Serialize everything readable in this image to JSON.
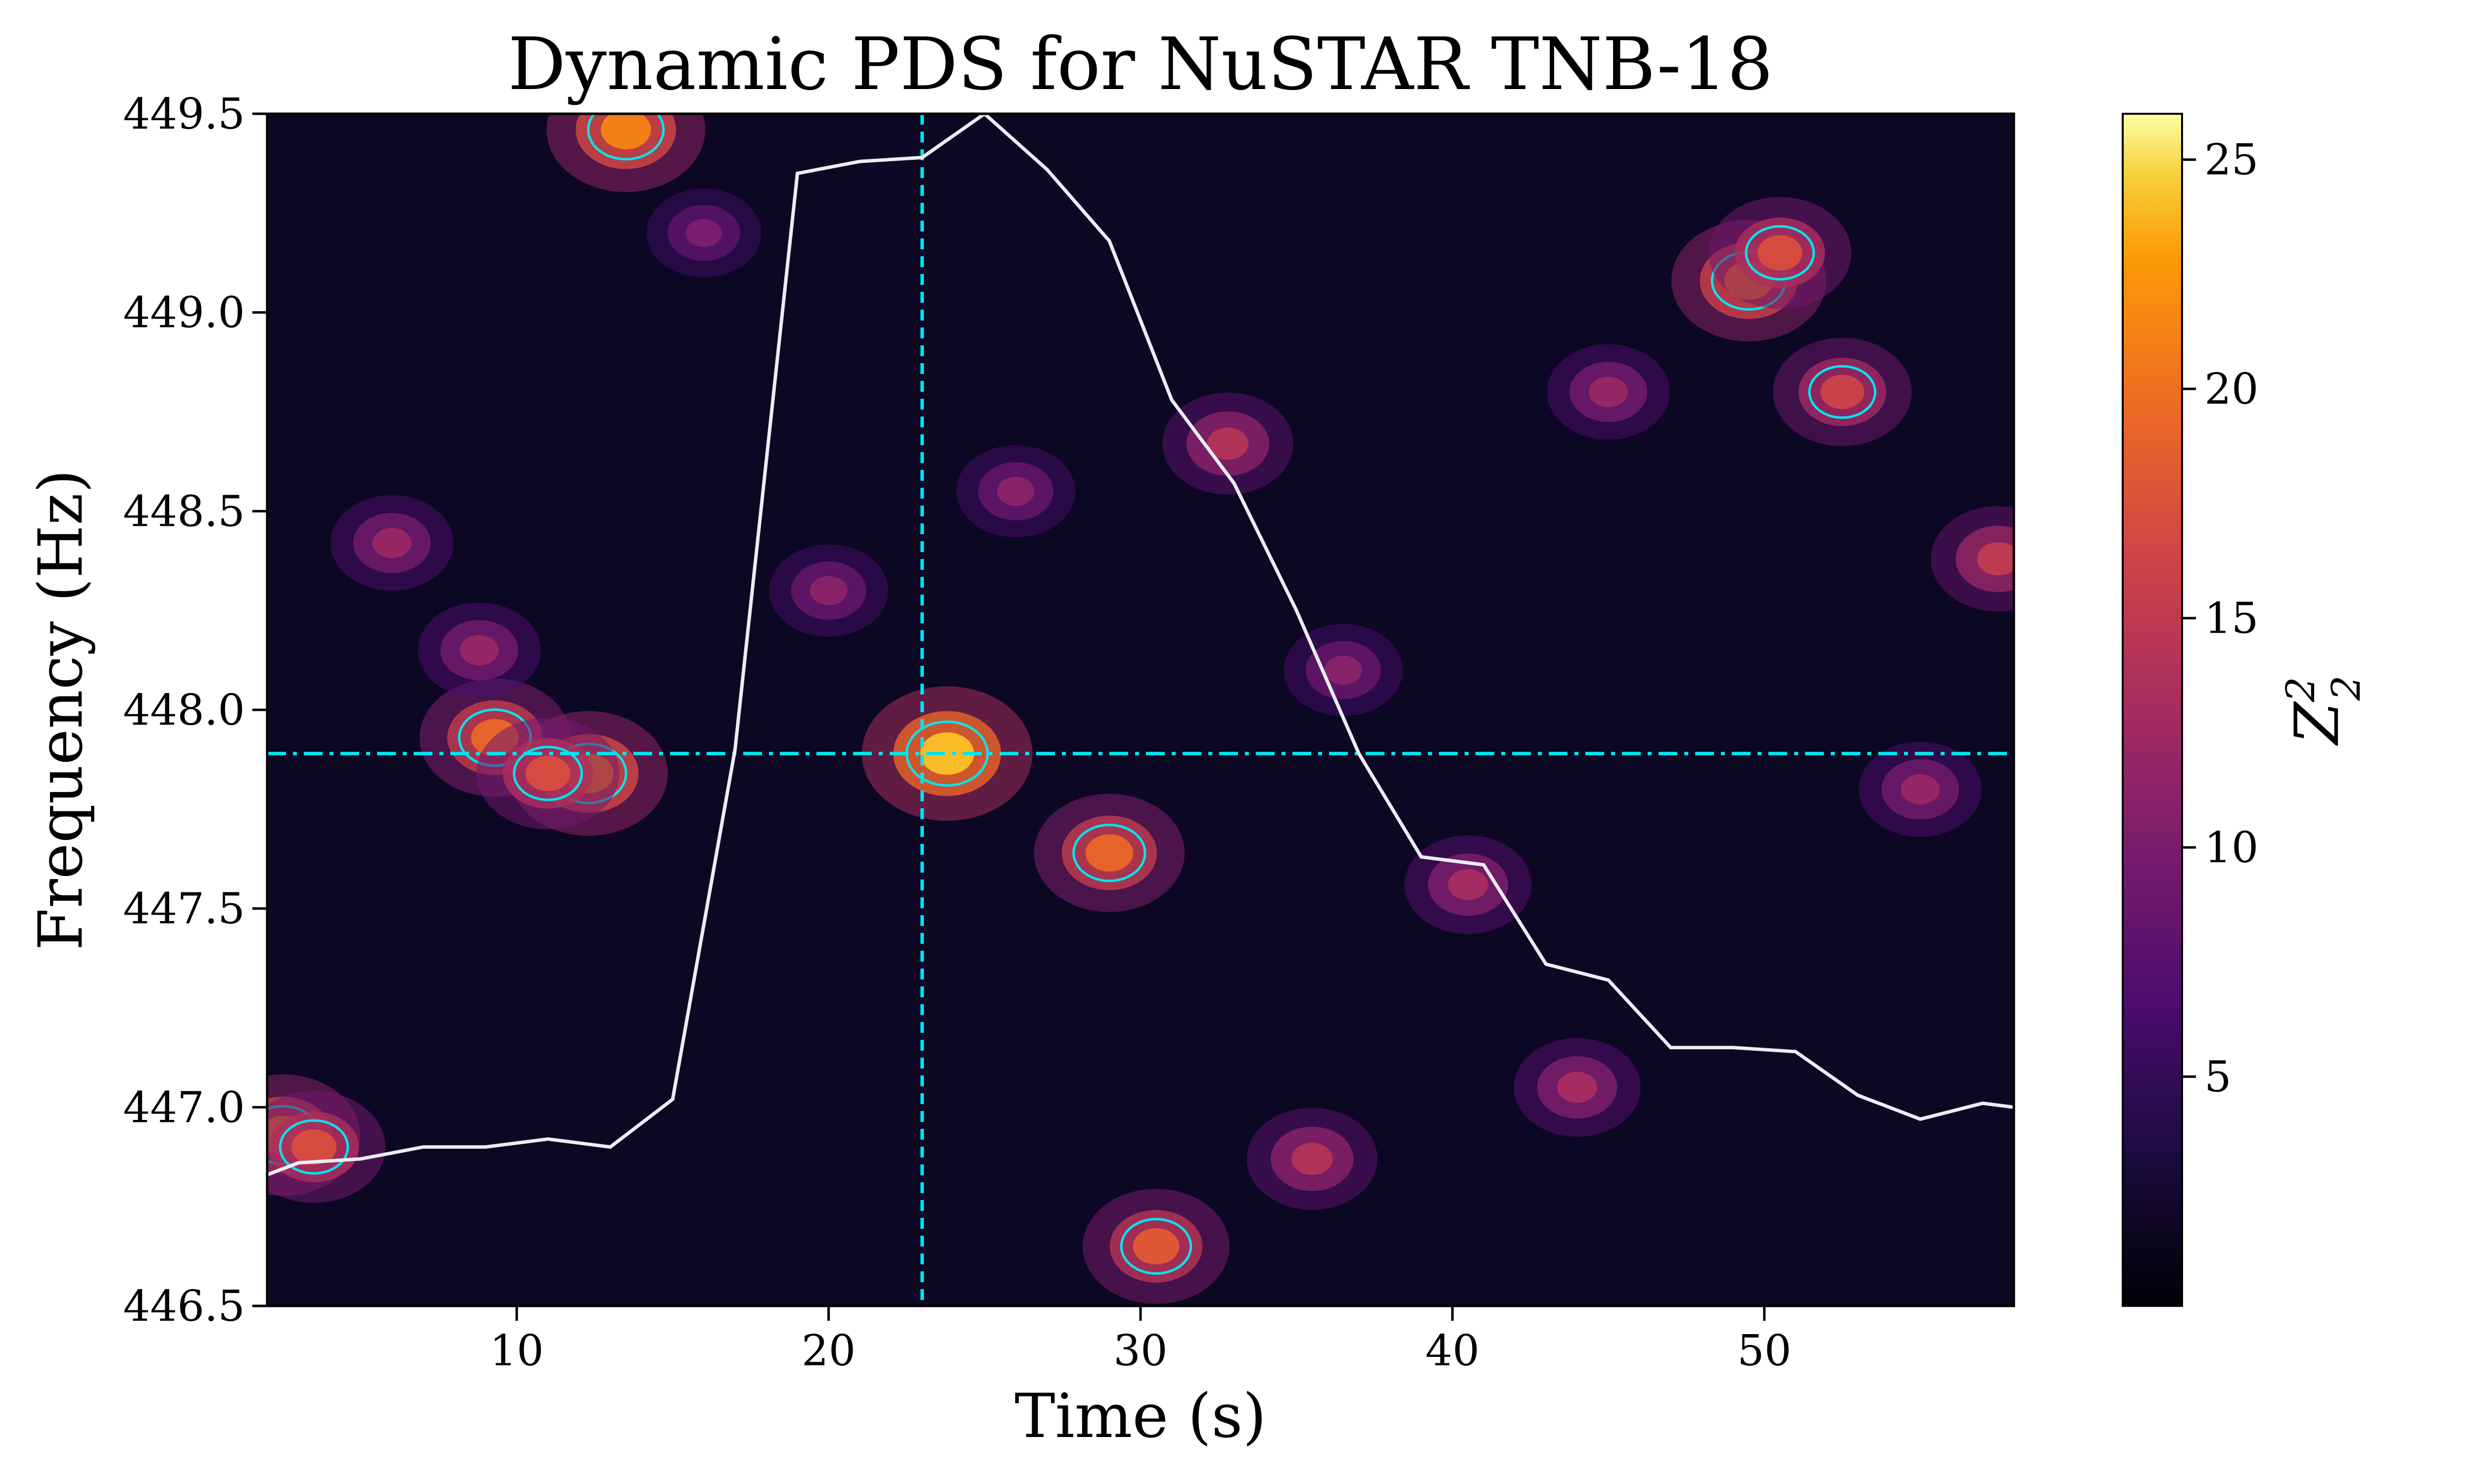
{
  "chart_data": {
    "type": "heatmap",
    "title": "Dynamic PDS for NuSTAR TNB-18",
    "xlabel": "Time (s)",
    "ylabel": "Frequency (Hz)",
    "colorbar_label": "Z",
    "colorbar_label_sub": "2",
    "colorbar_label_sup": "2",
    "colormap": "inferno",
    "xlim": [
      2,
      58
    ],
    "ylim": [
      446.5,
      449.5
    ],
    "zlim": [
      0,
      26
    ],
    "x_ticks": [
      "10",
      "20",
      "30",
      "40",
      "50"
    ],
    "y_ticks": [
      "446.5",
      "447.0",
      "447.5",
      "448.0",
      "448.5",
      "449.0",
      "449.5"
    ],
    "colorbar_ticks": [
      "5",
      "10",
      "15",
      "20",
      "25"
    ],
    "reference_lines": {
      "vertical_time": 23,
      "horizontal_frequency": 447.89,
      "color": "#00e5ee"
    },
    "lightcurve_overlay": {
      "color": "#ececf4",
      "x": [
        2,
        3,
        5,
        7,
        9,
        11,
        13,
        15,
        17,
        19,
        21,
        23,
        25,
        27,
        29,
        31,
        33,
        35,
        37,
        39,
        41,
        43,
        45,
        47,
        49,
        51,
        53,
        55,
        57,
        58
      ],
      "y": [
        446.83,
        446.86,
        446.87,
        446.9,
        446.9,
        446.92,
        446.9,
        447.02,
        447.9,
        449.35,
        449.38,
        449.39,
        449.5,
        449.36,
        449.18,
        448.78,
        448.57,
        448.25,
        447.89,
        447.63,
        447.61,
        447.36,
        447.32,
        447.15,
        447.15,
        447.14,
        447.03,
        446.97,
        447.01,
        447.0
      ]
    },
    "peaks": [
      {
        "x": 23.8,
        "y": 447.89,
        "z": 24
      },
      {
        "x": 12.3,
        "y": 447.84,
        "z": 21
      },
      {
        "x": 9.3,
        "y": 447.93,
        "z": 19
      },
      {
        "x": 11.0,
        "y": 447.84,
        "z": 17
      },
      {
        "x": 13.5,
        "y": 449.46,
        "z": 21
      },
      {
        "x": 49.5,
        "y": 449.08,
        "z": 20
      },
      {
        "x": 50.5,
        "y": 449.15,
        "z": 17
      },
      {
        "x": 29.0,
        "y": 447.64,
        "z": 19
      },
      {
        "x": 30.5,
        "y": 446.65,
        "z": 18
      },
      {
        "x": 2.5,
        "y": 446.93,
        "z": 20
      },
      {
        "x": 3.5,
        "y": 446.9,
        "z": 17
      },
      {
        "x": 52.5,
        "y": 448.8,
        "z": 16
      },
      {
        "x": 57.5,
        "y": 448.38,
        "z": 15
      },
      {
        "x": 35.5,
        "y": 446.87,
        "z": 14
      },
      {
        "x": 32.8,
        "y": 448.67,
        "z": 14
      },
      {
        "x": 44.0,
        "y": 447.05,
        "z": 13
      },
      {
        "x": 8.8,
        "y": 448.15,
        "z": 12
      },
      {
        "x": 26.0,
        "y": 448.55,
        "z": 11
      },
      {
        "x": 40.5,
        "y": 447.56,
        "z": 13
      },
      {
        "x": 6.0,
        "y": 448.42,
        "z": 12
      },
      {
        "x": 16.0,
        "y": 449.2,
        "z": 10
      },
      {
        "x": 20.0,
        "y": 448.3,
        "z": 11
      },
      {
        "x": 45.0,
        "y": 448.8,
        "z": 12
      },
      {
        "x": 55.0,
        "y": 447.8,
        "z": 12
      },
      {
        "x": 36.5,
        "y": 448.1,
        "z": 11
      }
    ]
  }
}
